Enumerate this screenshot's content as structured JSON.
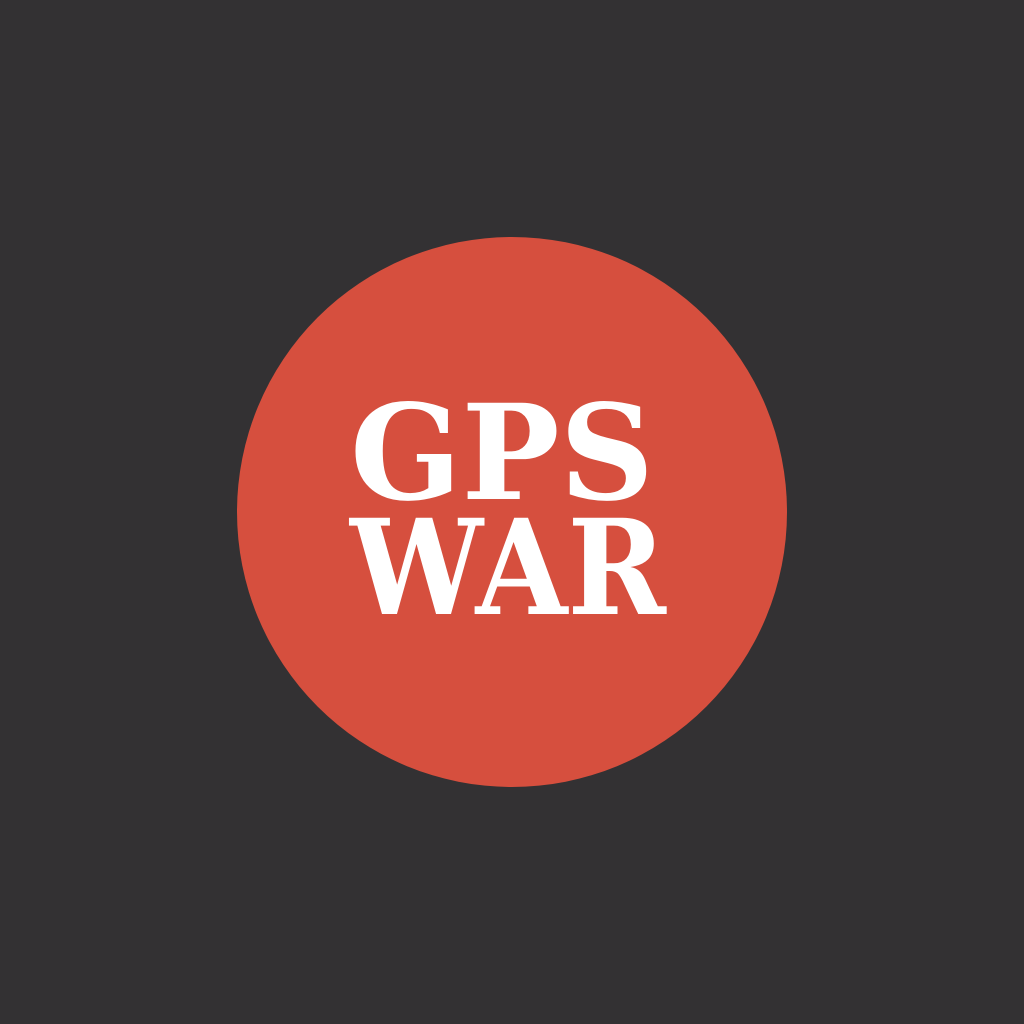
{
  "background_color": "#333133",
  "logo": {
    "disc_color": "#d64f3e",
    "text_color": "#ffffff",
    "line1": "GPS",
    "line2": "WAR"
  }
}
